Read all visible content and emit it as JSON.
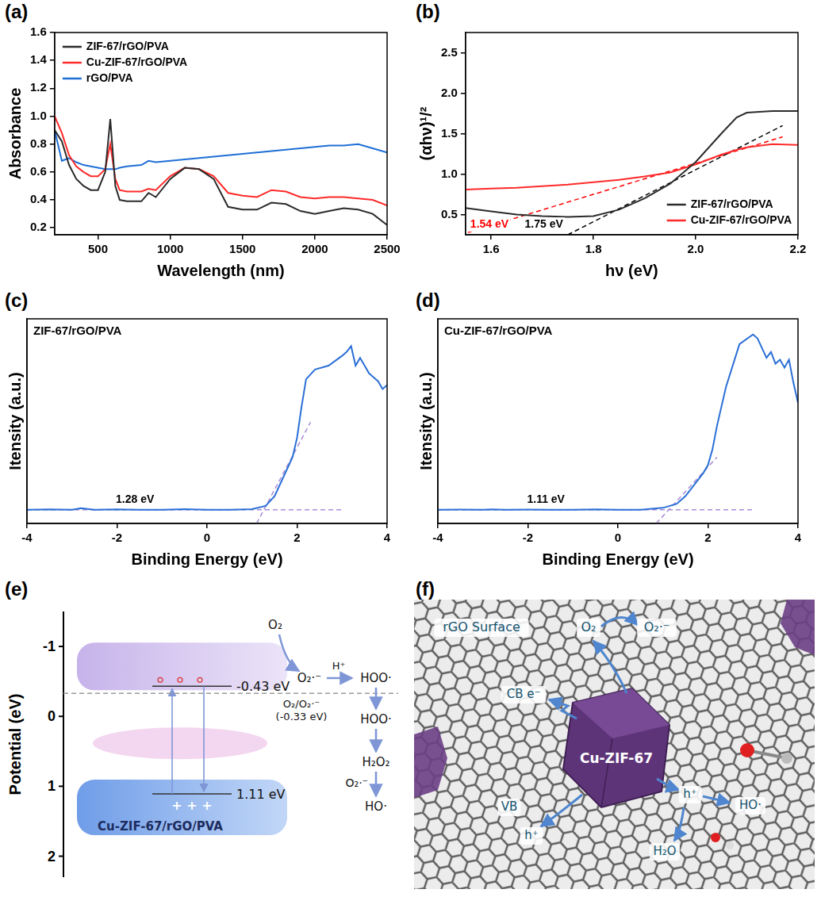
{
  "chart_data": [
    {
      "label": "(a)",
      "type": "line",
      "x_label": "Wavelength (nm)",
      "y_label": "Absorbance",
      "x": [
        200,
        250,
        300,
        350,
        400,
        450,
        500,
        550,
        585,
        620,
        650,
        700,
        800,
        850,
        900,
        1000,
        1100,
        1200,
        1300,
        1400,
        1500,
        1600,
        1700,
        1800,
        1900,
        2000,
        2100,
        2200,
        2300,
        2400,
        2500
      ],
      "xlim": [
        200,
        2500
      ],
      "xticks": [
        500,
        1000,
        1500,
        2000,
        2500
      ],
      "ylim": [
        0.15,
        1.6
      ],
      "yticks": [
        0.2,
        0.4,
        0.6,
        0.8,
        {
          "value": 1,
          "label": "1.0"
        },
        1.2,
        1.4,
        1.6
      ],
      "grid": false,
      "legend": "upper left",
      "series": [
        {
          "name": "ZIF-67/rGO/PVA",
          "color": "#2b2b2b",
          "values": [
            0.9,
            0.82,
            0.65,
            0.55,
            0.5,
            0.47,
            0.47,
            0.6,
            0.98,
            0.5,
            0.4,
            0.39,
            0.39,
            0.45,
            0.42,
            0.55,
            0.63,
            0.62,
            0.55,
            0.35,
            0.33,
            0.33,
            0.38,
            0.37,
            0.32,
            0.3,
            0.32,
            0.34,
            0.33,
            0.3,
            0.22
          ]
        },
        {
          "name": "Cu-ZIF-67/rGO/PVA",
          "color": "#ff2a2a",
          "values": [
            1.0,
            0.88,
            0.72,
            0.64,
            0.6,
            0.57,
            0.57,
            0.62,
            0.8,
            0.55,
            0.47,
            0.46,
            0.46,
            0.48,
            0.47,
            0.57,
            0.63,
            0.62,
            0.57,
            0.45,
            0.43,
            0.42,
            0.47,
            0.46,
            0.42,
            0.41,
            0.42,
            0.42,
            0.41,
            0.4,
            0.36
          ]
        },
        {
          "name": "rGO/PVA",
          "color": "#1f6fd6",
          "values": [
            0.9,
            0.68,
            0.7,
            0.67,
            0.65,
            0.64,
            0.63,
            0.62,
            0.62,
            0.62,
            0.63,
            0.64,
            0.65,
            0.68,
            0.67,
            0.68,
            0.69,
            0.7,
            0.71,
            0.72,
            0.73,
            0.74,
            0.75,
            0.76,
            0.77,
            0.78,
            0.79,
            0.79,
            0.8,
            0.77,
            0.74
          ]
        }
      ]
    },
    {
      "label": "(b)",
      "type": "line",
      "x_label": "hν (eV)",
      "y_label": "(αhν)¹/²",
      "x": [
        1.55,
        1.6,
        1.65,
        1.7,
        1.75,
        1.8,
        1.85,
        1.9,
        1.95,
        2.0,
        2.05,
        2.08,
        2.1,
        2.15,
        2.2
      ],
      "xlim": [
        1.55,
        2.2
      ],
      "xticks": [
        1.6,
        1.8,
        {
          "value": 2,
          "label": "2.0"
        },
        2.2
      ],
      "ylim": [
        0.25,
        2.75
      ],
      "yticks": [
        0.5,
        {
          "value": 1,
          "label": "1.0"
        },
        1.5,
        {
          "value": 2,
          "label": "2.0"
        },
        2.5
      ],
      "grid": false,
      "legend": "lower right",
      "series": [
        {
          "name": "ZIF-67/rGO/PVA",
          "color": "#2b2b2b",
          "values": [
            0.58,
            0.54,
            0.5,
            0.48,
            0.47,
            0.48,
            0.56,
            0.7,
            0.88,
            1.15,
            1.5,
            1.7,
            1.76,
            1.78,
            1.78
          ]
        },
        {
          "name": "Cu-ZIF-67/rGO/PVA",
          "color": "#ff2a2a",
          "values": [
            0.81,
            0.82,
            0.83,
            0.85,
            0.87,
            0.9,
            0.93,
            0.97,
            1.02,
            1.12,
            1.24,
            1.3,
            1.33,
            1.37,
            1.36
          ]
        }
      ],
      "fits": [
        {
          "x": [
            1.75,
            2.17
          ],
          "values": [
            0.25,
            1.6
          ],
          "color": "#000000",
          "line_style": "dashed",
          "label": "1.75 eV"
        },
        {
          "x": [
            1.54,
            2.17
          ],
          "values": [
            0.25,
            1.46
          ],
          "color": "#ff0000",
          "line_style": "dashed",
          "label": "1.54 eV"
        }
      ]
    },
    {
      "label": "(c)",
      "type": "line",
      "title": "ZIF-67/rGO/PVA",
      "x_label": "Binding Energy (eV)",
      "y_label": "Itensity (a.u.)",
      "x": [
        -4,
        -3.5,
        -3,
        -2.8,
        -2.5,
        -2,
        -1.5,
        -1,
        -0.5,
        0,
        0.5,
        1,
        1.3,
        1.5,
        1.7,
        1.9,
        2,
        2.1,
        2.2,
        2.4,
        2.7,
        3,
        3.1,
        3.2,
        3.3,
        3.4,
        3.5,
        3.6,
        3.7,
        3.8,
        3.9,
        4
      ],
      "xlim": [
        -4,
        4
      ],
      "xticks": [
        -4,
        -2,
        0,
        2,
        4
      ],
      "ylim": [
        0,
        1.05
      ],
      "grid": false,
      "tick_labels": "x",
      "series": [
        {
          "color": "#2a6fd6",
          "values": [
            0.07,
            0.072,
            0.07,
            0.078,
            0.07,
            0.072,
            0.07,
            0.07,
            0.073,
            0.07,
            0.07,
            0.073,
            0.09,
            0.14,
            0.24,
            0.34,
            0.44,
            0.6,
            0.74,
            0.79,
            0.81,
            0.86,
            0.88,
            0.91,
            0.81,
            0.85,
            0.81,
            0.77,
            0.75,
            0.73,
            0.69,
            0.71
          ]
        }
      ],
      "fits": [
        {
          "x": [
            -4,
            3
          ],
          "values": [
            0.07,
            0.07
          ],
          "color": "#a78bd6",
          "line_style": "dashed",
          "label": "1.28 eV"
        },
        {
          "x": [
            1.1,
            2.3
          ],
          "values": [
            0.0,
            0.52
          ],
          "color": "#a78bd6",
          "line_style": "dashed"
        }
      ]
    },
    {
      "label": "(d)",
      "type": "line",
      "title": "Cu-ZIF-67/rGO/PVA",
      "x_label": "Binding Energy (eV)",
      "y_label": "Itensity (a.u.)",
      "x": [
        -4,
        -3.5,
        -3,
        -2.8,
        -2.5,
        -2,
        -1.5,
        -1,
        -0.5,
        0,
        0.5,
        1,
        1.3,
        1.5,
        1.7,
        1.9,
        2,
        2.1,
        2.2,
        2.4,
        2.7,
        3,
        3.1,
        3.2,
        3.3,
        3.4,
        3.5,
        3.6,
        3.7,
        3.8,
        3.9,
        4
      ],
      "xlim": [
        -4,
        4
      ],
      "xticks": [
        -4,
        -2,
        0,
        2,
        4
      ],
      "ylim": [
        0,
        1.05
      ],
      "grid": false,
      "tick_labels": "x",
      "series": [
        {
          "color": "#2a6fd6",
          "values": [
            0.07,
            0.071,
            0.07,
            0.072,
            0.07,
            0.071,
            0.07,
            0.07,
            0.072,
            0.07,
            0.07,
            0.08,
            0.1,
            0.14,
            0.2,
            0.26,
            0.3,
            0.38,
            0.5,
            0.7,
            0.92,
            0.97,
            0.95,
            0.9,
            0.85,
            0.88,
            0.82,
            0.84,
            0.8,
            0.84,
            0.72,
            0.62
          ]
        }
      ],
      "fits": [
        {
          "x": [
            -4,
            3
          ],
          "values": [
            0.07,
            0.07
          ],
          "color": "#a78bd6",
          "line_style": "dashed",
          "label": "1.11 eV"
        },
        {
          "x": [
            0.85,
            2.2
          ],
          "values": [
            0.0,
            0.34
          ],
          "color": "#a78bd6",
          "line_style": "dashed"
        }
      ]
    }
  ],
  "diagram_e": {
    "label": "(e)",
    "y_label": "Potential (eV)",
    "ylim": [
      -1.5,
      2.3
    ],
    "yticks": [
      -1,
      0,
      1,
      2
    ],
    "conduction_band": {
      "value": -0.43,
      "label": "-0.43 eV"
    },
    "valence_band": {
      "value": 1.11,
      "label": "1.11 eV",
      "holes": "+ + +"
    },
    "redox_level": {
      "value": -0.33,
      "name": "O₂/O₂·⁻",
      "label": "(-0.33 eV)"
    },
    "material": "Cu-ZIF-67/rGO/PVA",
    "reaction_texts": [
      "O₂",
      "O₂·⁻",
      "H⁺",
      "HOO·",
      "HOO·",
      "H₂O₂",
      "O₂·⁻",
      "HO·"
    ]
  },
  "diagram_f": {
    "label": "(f)",
    "surface": "rGO Surface",
    "reactant": "O₂",
    "product": "O₂·⁻",
    "conduction": "CB e⁻",
    "crystal": "Cu-ZIF-67",
    "valence": "VB",
    "holes": [
      "h⁺",
      "h⁺"
    ],
    "hydroxyl": "HO·",
    "water": "H₂O"
  }
}
